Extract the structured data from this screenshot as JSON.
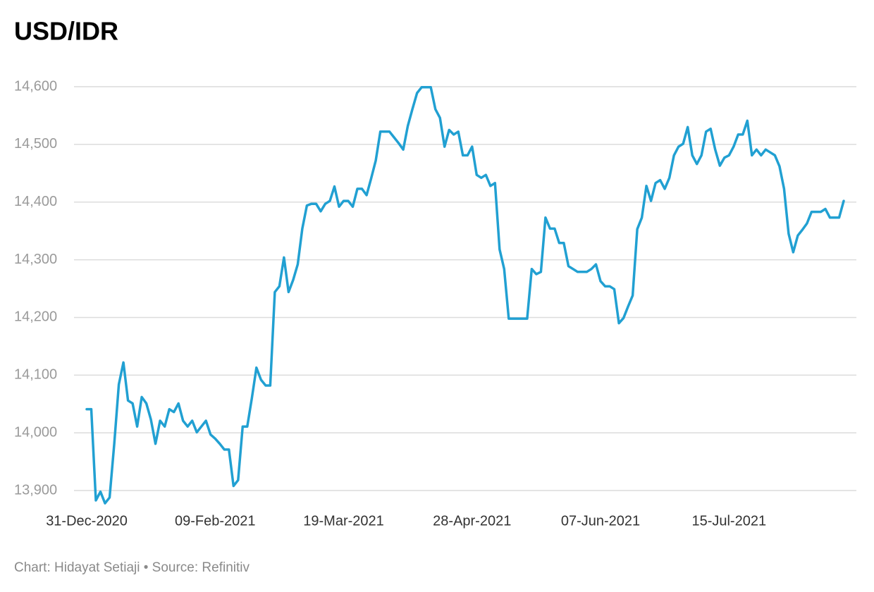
{
  "chart_data": {
    "type": "line",
    "title": "USD/IDR",
    "footer": "Chart: Hidayat Setiaji • Source: Refinitiv",
    "categories": [
      "31-Dec-2020",
      null,
      null,
      null,
      null,
      null,
      null,
      null,
      null,
      null,
      null,
      null,
      null,
      null,
      null,
      null,
      null,
      null,
      null,
      null,
      null,
      null,
      null,
      null,
      null,
      null,
      null,
      null,
      "09-Feb-2021",
      null,
      null,
      null,
      null,
      null,
      null,
      null,
      null,
      null,
      null,
      null,
      null,
      null,
      null,
      null,
      null,
      null,
      null,
      null,
      null,
      null,
      null,
      null,
      null,
      null,
      null,
      null,
      "19-Mar-2021",
      null,
      null,
      null,
      null,
      null,
      null,
      null,
      null,
      null,
      null,
      null,
      null,
      null,
      null,
      null,
      null,
      null,
      null,
      null,
      null,
      null,
      null,
      null,
      null,
      null,
      null,
      null,
      "28-Apr-2021",
      null,
      null,
      null,
      null,
      null,
      null,
      null,
      null,
      null,
      null,
      null,
      null,
      null,
      null,
      null,
      null,
      null,
      null,
      null,
      null,
      null,
      null,
      null,
      null,
      null,
      null,
      null,
      "07-Jun-2021",
      null,
      null,
      null,
      null,
      null,
      null,
      null,
      null,
      null,
      null,
      null,
      null,
      null,
      null,
      null,
      null,
      null,
      null,
      null,
      null,
      null,
      null,
      null,
      null,
      null,
      null,
      null,
      "15-Jul-2021",
      null,
      null,
      null,
      null,
      null,
      null,
      null,
      null,
      null,
      null,
      null,
      null,
      null,
      null,
      null,
      null,
      null,
      null,
      null,
      null,
      null,
      null,
      null,
      null,
      null
    ],
    "series": [
      {
        "color": "#21a0d2",
        "values": [
          14041,
          14041,
          13883,
          13898,
          13878,
          13888,
          13981,
          14084,
          14122,
          14056,
          14051,
          14011,
          14062,
          14051,
          14023,
          13981,
          14021,
          14011,
          14041,
          14036,
          14051,
          14021,
          14011,
          14021,
          14001,
          14011,
          14021,
          13997,
          13990,
          13981,
          13971,
          13971,
          13908,
          13918,
          14011,
          14011,
          14060,
          14113,
          14092,
          14082,
          14082,
          14244,
          14254,
          14304,
          14244,
          14265,
          14292,
          14354,
          14394,
          14397,
          14397,
          14384,
          14397,
          14402,
          14427,
          14392,
          14402,
          14402,
          14392,
          14423,
          14423,
          14412,
          14441,
          14472,
          14522,
          14522,
          14522,
          14512,
          14502,
          14491,
          14532,
          14561,
          14589,
          14599,
          14599,
          14599,
          14561,
          14546,
          14496,
          14525,
          14517,
          14522,
          14481,
          14481,
          14496,
          14447,
          14442,
          14447,
          14428,
          14433,
          14318,
          14284,
          14198,
          14198,
          14198,
          14198,
          14198,
          14284,
          14275,
          14279,
          14373,
          14354,
          14354,
          14329,
          14329,
          14289,
          14284,
          14279,
          14279,
          14279,
          14284,
          14292,
          14263,
          14254,
          14254,
          14249,
          14190,
          14199,
          14219,
          14238,
          14353,
          14373,
          14428,
          14402,
          14433,
          14438,
          14423,
          14442,
          14481,
          14496,
          14501,
          14530,
          14481,
          14466,
          14481,
          14522,
          14527,
          14491,
          14463,
          14477,
          14481,
          14496,
          14517,
          14517,
          14541,
          14481,
          14491,
          14481,
          14491,
          14486,
          14481,
          14462,
          14423,
          14345,
          14313,
          14342,
          14352,
          14363,
          14383,
          14383,
          14383,
          14388,
          14373,
          14373,
          14373,
          14402
        ]
      }
    ],
    "ylim": [
      13870,
      14620
    ],
    "yticks": [
      {
        "value": 13900,
        "label": "13,900"
      },
      {
        "value": 14000,
        "label": "14,000"
      },
      {
        "value": 14100,
        "label": "14,100"
      },
      {
        "value": 14200,
        "label": "14,200"
      },
      {
        "value": 14300,
        "label": "14,300"
      },
      {
        "value": 14400,
        "label": "14,400"
      },
      {
        "value": 14500,
        "label": "14,500"
      },
      {
        "value": 14600,
        "label": "14,600"
      }
    ],
    "grid": true
  }
}
